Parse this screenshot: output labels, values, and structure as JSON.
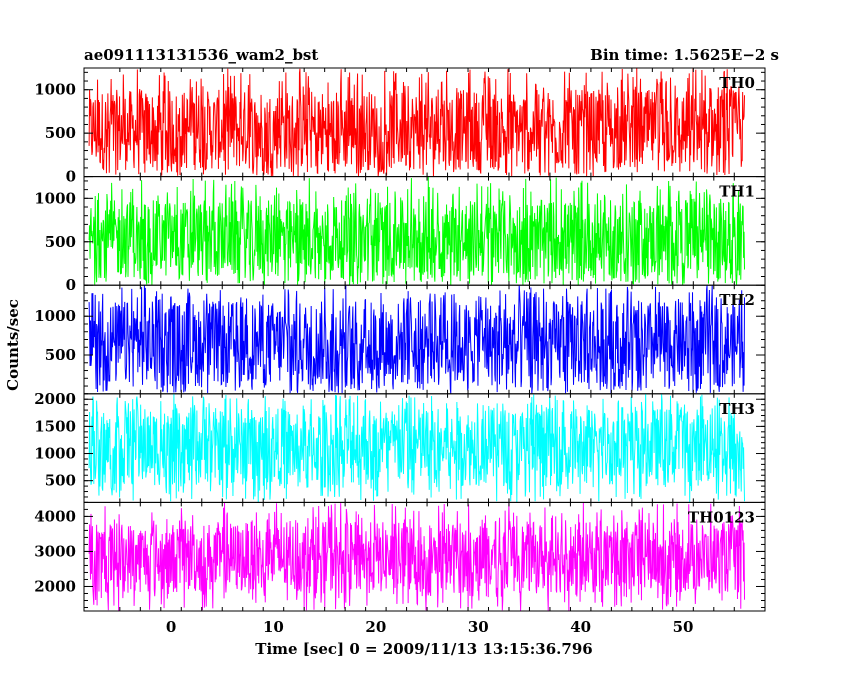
{
  "header": {
    "title": "ae091113131536_wam2_bst",
    "bin_time": "Bin time: 1.5625E−2 s"
  },
  "axes": {
    "xlabel": "Time [sec] 0 = 2009/11/13 13:15:36.796",
    "ylabel": "Counts/sec"
  },
  "chart_data": {
    "type": "line",
    "title": "ae091113131536_wam2_bst",
    "subtitle": "Bin time: 1.5625E−2 s",
    "xlabel": "Time [sec] 0 = 2009/11/13 13:15:36.796",
    "ylabel": "Counts/sec",
    "xlim": [
      -8.5,
      58
    ],
    "x_ticks": [
      0,
      10,
      20,
      30,
      40,
      50
    ],
    "x_tick_labels": [
      "0",
      "10",
      "20",
      "30",
      "40",
      "50"
    ],
    "data_range_x": [
      -8.0,
      56.0
    ],
    "bin_time_s": 0.015625,
    "grid": false,
    "panels": [
      {
        "name": "TH0",
        "color": "#ff0000",
        "ylim": [
          0,
          1250
        ],
        "y_ticks": [
          0,
          500,
          1000
        ],
        "y_tick_labels": [
          "0",
          "500",
          "1000"
        ],
        "typical": 600,
        "typical_low": 70,
        "typical_high": 1000,
        "min": 0,
        "max": 1250
      },
      {
        "name": "TH1",
        "color": "#00ff00",
        "ylim": [
          0,
          1250
        ],
        "y_ticks": [
          0,
          500,
          1000
        ],
        "y_tick_labels": [
          "0",
          "500",
          "1000"
        ],
        "typical": 530,
        "typical_low": 80,
        "typical_high": 980,
        "min": 0,
        "max": 1250
      },
      {
        "name": "TH2",
        "color": "#0000ff",
        "ylim": [
          0,
          1400
        ],
        "y_ticks": [
          500,
          1000
        ],
        "y_tick_labels": [
          "500",
          "1000"
        ],
        "typical": 650,
        "typical_low": 90,
        "typical_high": 1200,
        "min": 0,
        "max": 1400
      },
      {
        "name": "TH3",
        "color": "#00ffff",
        "ylim": [
          100,
          2100
        ],
        "y_ticks": [
          500,
          1000,
          1500,
          2000
        ],
        "y_tick_labels": [
          "500",
          "1000",
          "1500",
          "2000"
        ],
        "typical": 1150,
        "typical_low": 400,
        "typical_high": 1850,
        "min": 100,
        "max": 2100
      },
      {
        "name": "TH0123",
        "color": "#ff00ff",
        "ylim": [
          1300,
          4400
        ],
        "y_ticks": [
          2000,
          3000,
          4000
        ],
        "y_tick_labels": [
          "2000",
          "3000",
          "4000"
        ],
        "typical": 2750,
        "typical_low": 1800,
        "typical_high": 3850,
        "min": 1300,
        "max": 4400
      }
    ]
  }
}
